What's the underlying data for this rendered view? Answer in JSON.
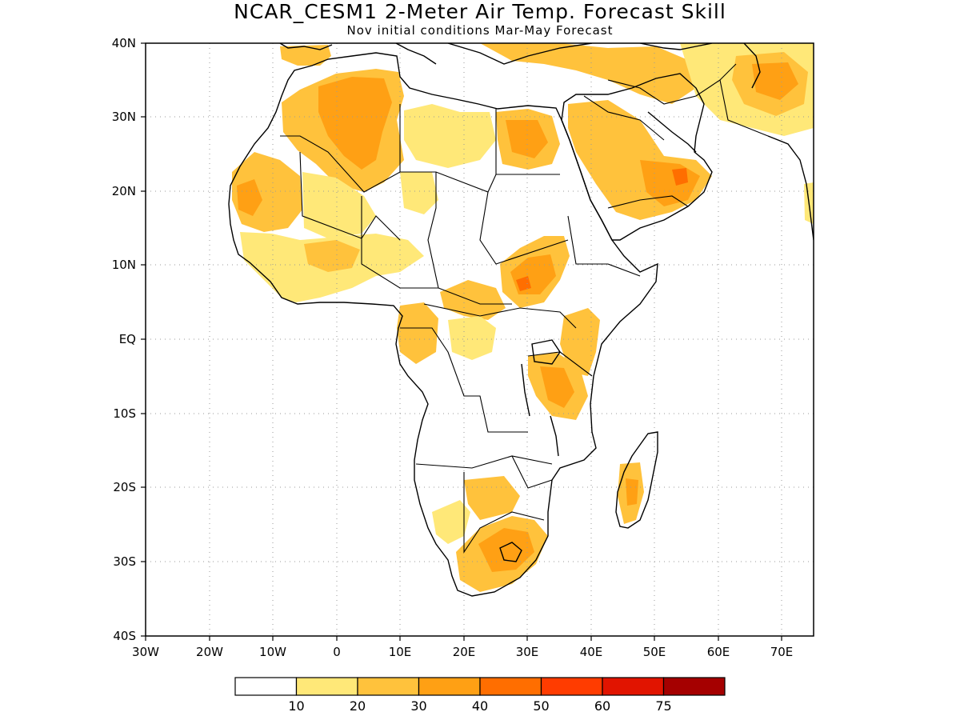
{
  "title": "NCAR_CESM1 2-Meter Air Temp. Forecast Skill",
  "subtitle": "Nov initial conditions  Mar-May Forecast",
  "lon_ticks": [
    "30W",
    "20W",
    "10W",
    "0",
    "10E",
    "20E",
    "30E",
    "40E",
    "50E",
    "60E",
    "70E"
  ],
  "lat_ticks": [
    "40N",
    "30N",
    "20N",
    "10N",
    "EQ",
    "10S",
    "20S",
    "30S",
    "40S"
  ],
  "map_extent": {
    "lon_min": -30,
    "lon_max": 75,
    "lat_min": -40,
    "lat_max": 40
  },
  "colorbar": {
    "labels": [
      "10",
      "20",
      "30",
      "40",
      "50",
      "60",
      "75"
    ],
    "colors": [
      "#ffffff",
      "#ffe878",
      "#ffc23c",
      "#ffa014",
      "#ff6e00",
      "#ff3c00",
      "#e11400",
      "#a50000"
    ]
  },
  "colors": {
    "frame": "#000000",
    "grid": "#9a9a9a",
    "coast": "#000000"
  }
}
